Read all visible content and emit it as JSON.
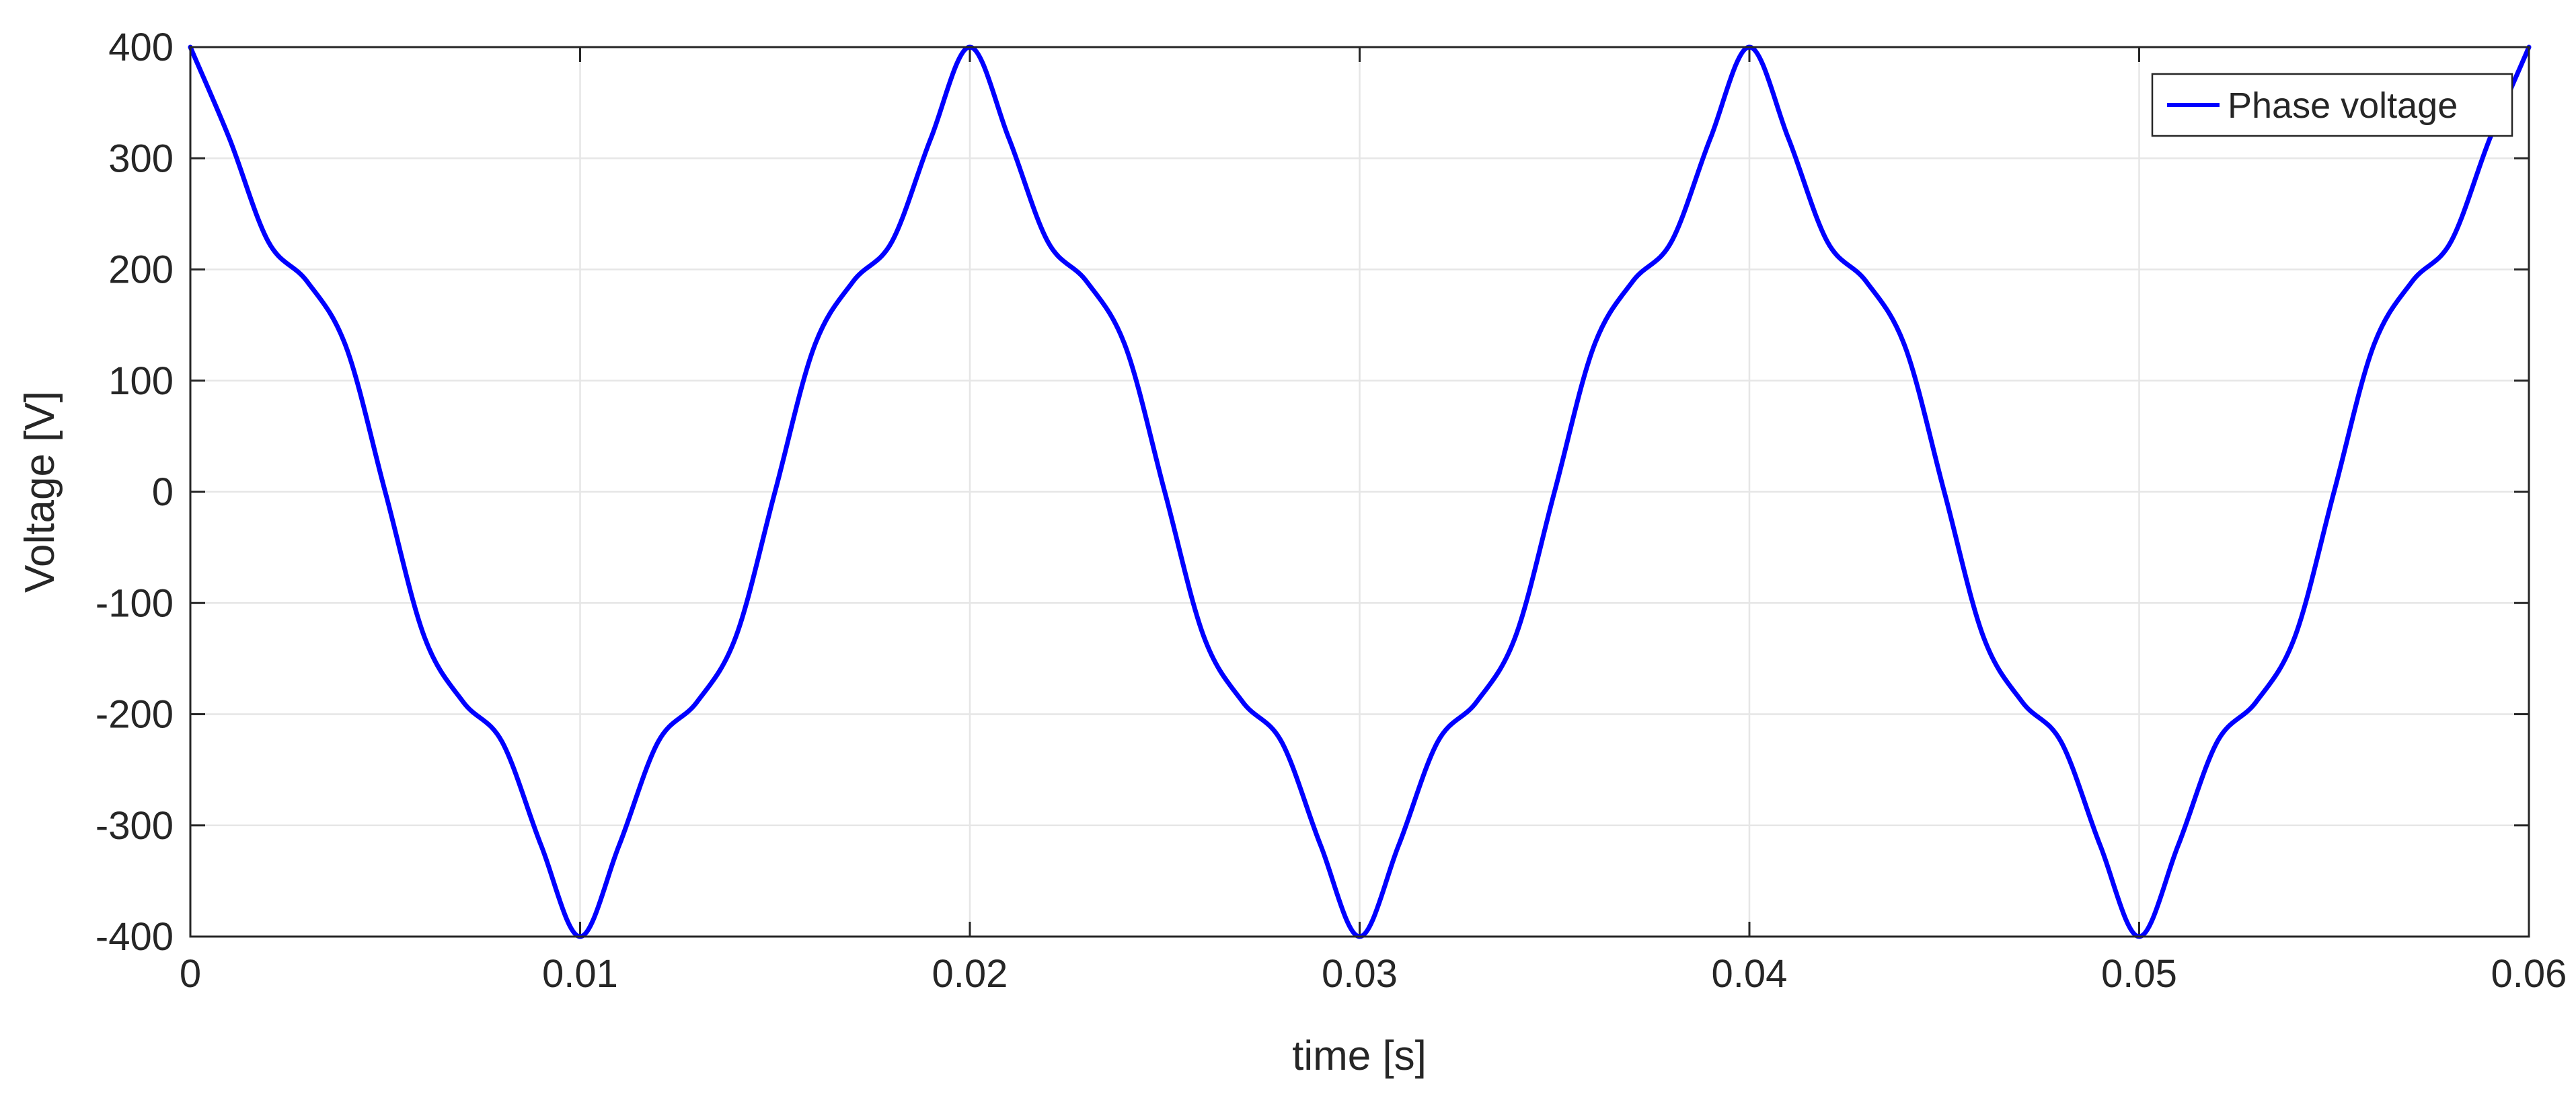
{
  "chart_data": {
    "type": "line",
    "xlabel": "time [s]",
    "ylabel": "Voltage [V]",
    "xlim": [
      0,
      0.06
    ],
    "ylim": [
      -400,
      400
    ],
    "x_ticks": [
      "0",
      "0.01",
      "0.02",
      "0.03",
      "0.04",
      "0.05",
      "0.06"
    ],
    "y_ticks": [
      "-400",
      "-300",
      "-200",
      "-100",
      "0",
      "100",
      "200",
      "300",
      "400"
    ],
    "grid": true,
    "legend_position": "top-right",
    "series": [
      {
        "name": "Phase voltage",
        "color": "#0000ff",
        "x": [
          0,
          0.001,
          0.002,
          0.003,
          0.004,
          0.005,
          0.006,
          0.007,
          0.008,
          0.009,
          0.01,
          0.011,
          0.012,
          0.013,
          0.014,
          0.015,
          0.016,
          0.017,
          0.018,
          0.019,
          0.02,
          0.021,
          0.022,
          0.023,
          0.024,
          0.025,
          0.026,
          0.027,
          0.028,
          0.029,
          0.03,
          0.031,
          0.032,
          0.033,
          0.034,
          0.035,
          0.036,
          0.037,
          0.038,
          0.039,
          0.04,
          0.041,
          0.042,
          0.043,
          0.044,
          0.045,
          0.046,
          0.047,
          0.048,
          0.049,
          0.05,
          0.051,
          0.052,
          0.053,
          0.054,
          0.055,
          0.056,
          0.057,
          0.058,
          0.059,
          0.06
        ],
        "values": [
          400,
          318,
          225,
          189,
          130,
          0,
          -130,
          -189,
          -225,
          -318,
          -400,
          -318,
          -225,
          -189,
          -130,
          0,
          130,
          189,
          225,
          318,
          400,
          318,
          225,
          189,
          130,
          0,
          -130,
          -189,
          -225,
          -318,
          -400,
          -318,
          -225,
          -189,
          -130,
          0,
          130,
          189,
          225,
          318,
          400,
          318,
          225,
          189,
          130,
          0,
          -130,
          -189,
          -225,
          -318,
          -400,
          -318,
          -225,
          -189,
          -130,
          0,
          130,
          189,
          225,
          318,
          400
        ]
      }
    ]
  },
  "colors": {
    "line": "#0000ff",
    "axis": "#262626",
    "grid": "#e6e6e6",
    "legend_border": "#262626"
  }
}
